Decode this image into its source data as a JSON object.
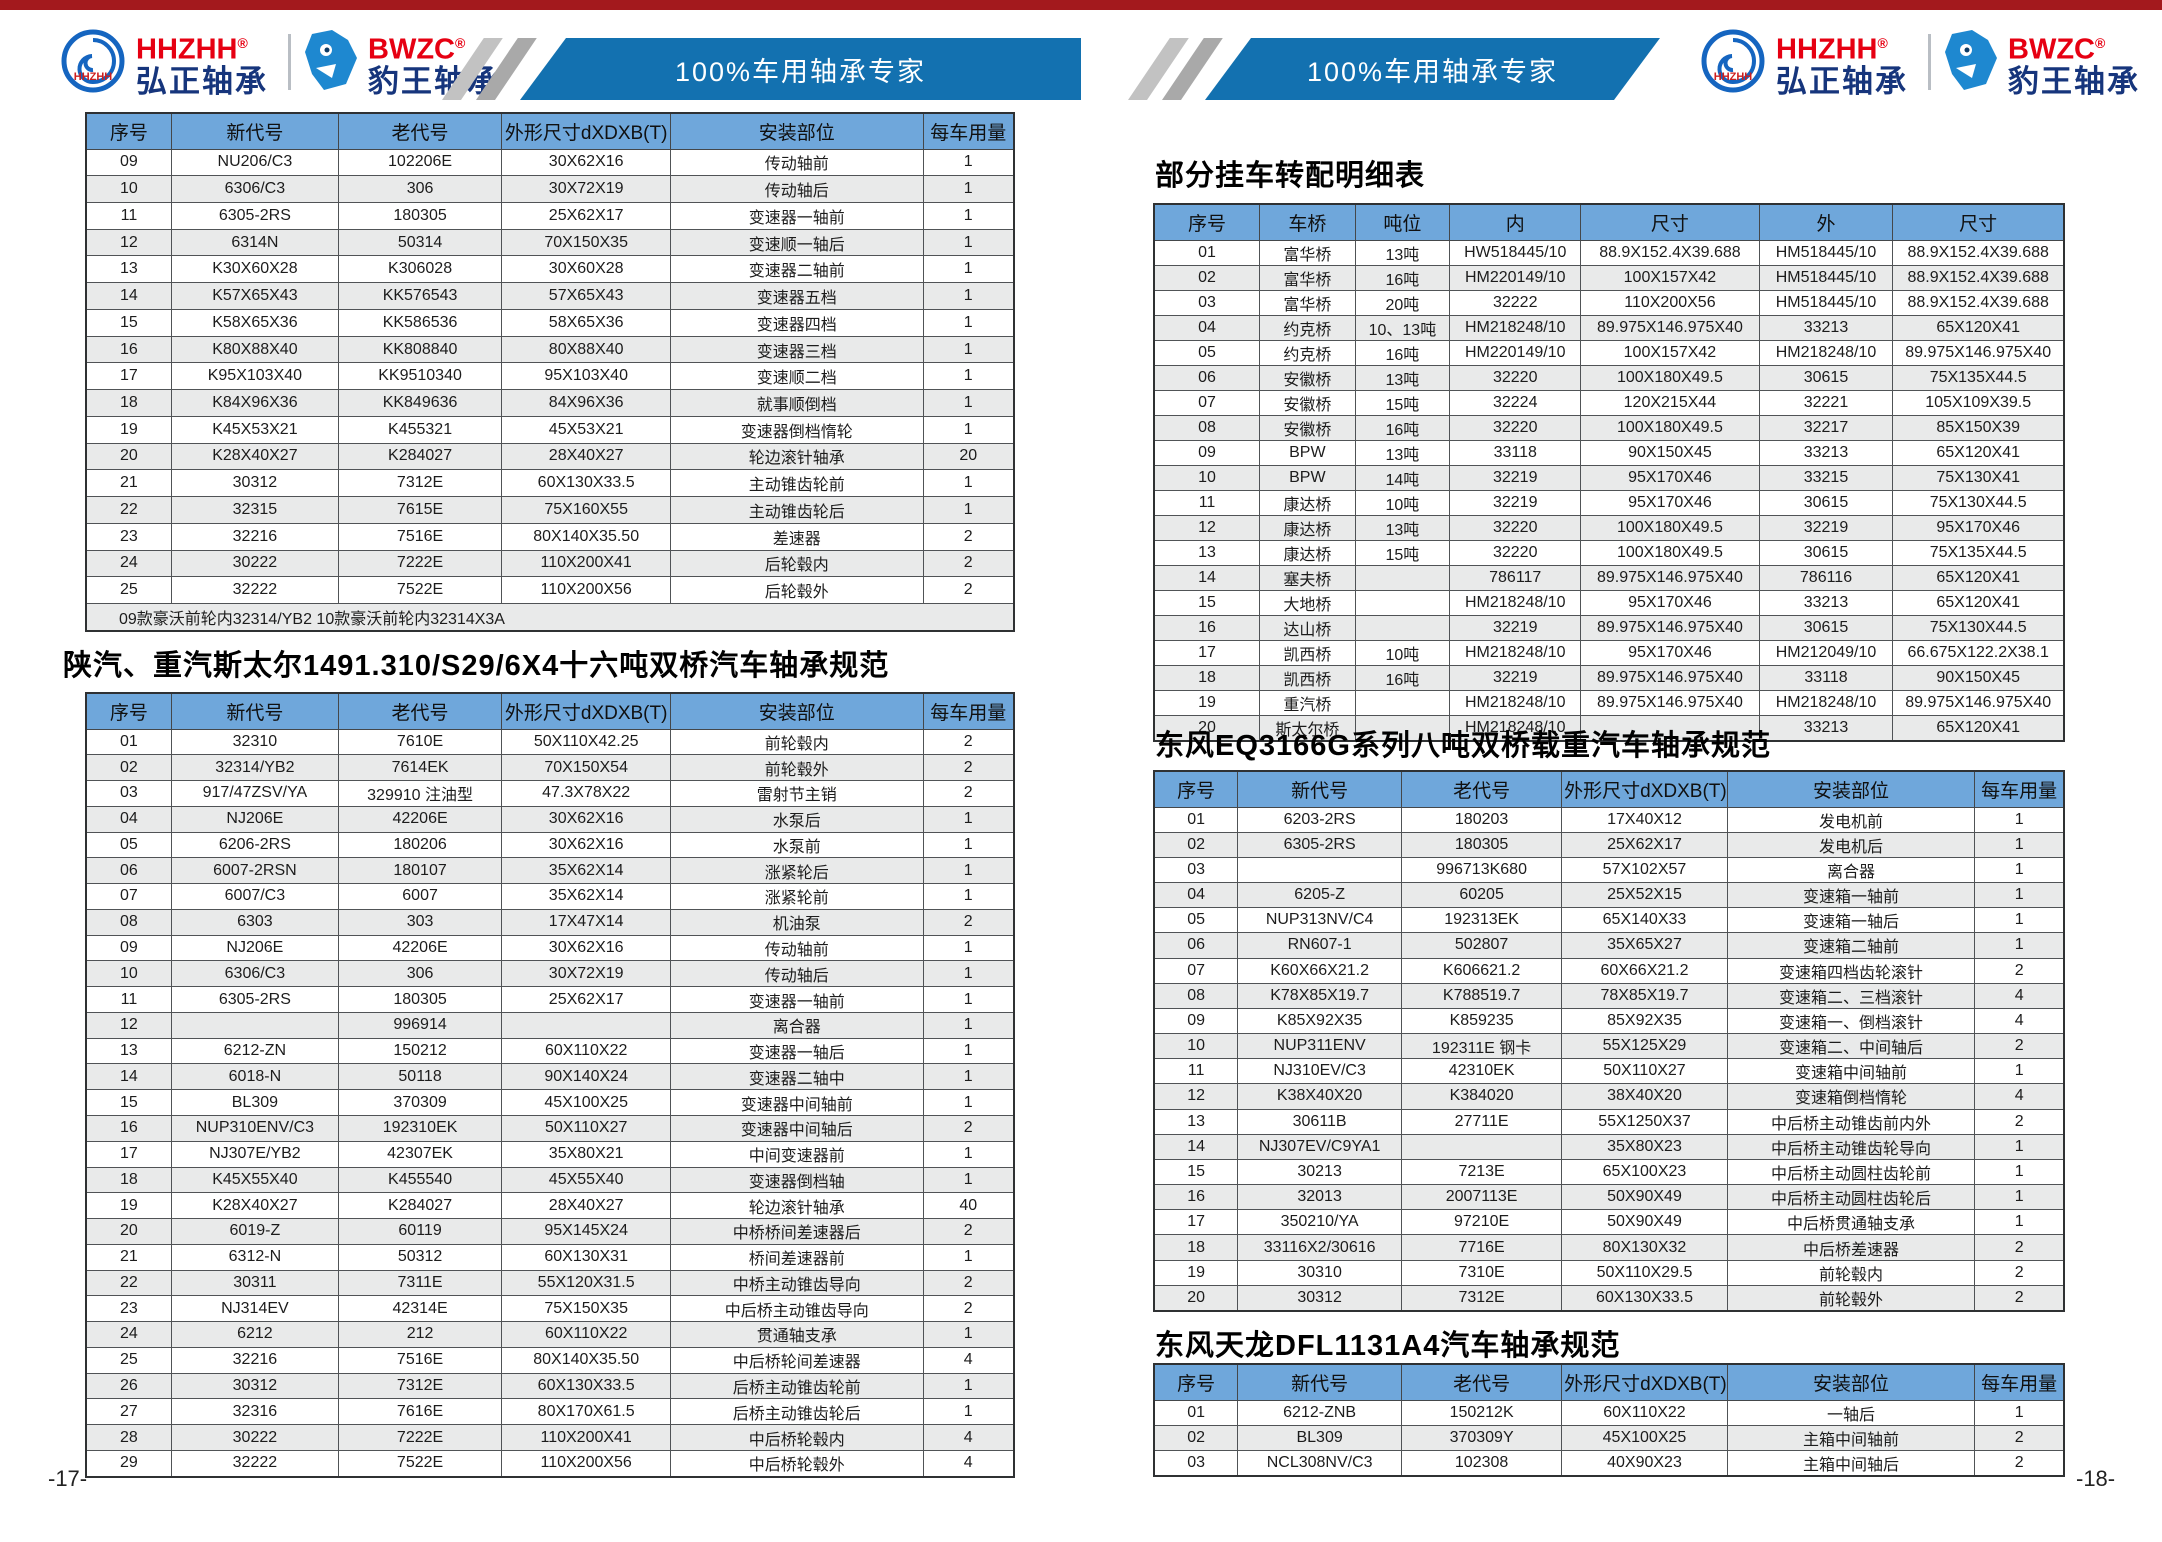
{
  "header": {
    "top_bar_color": "#a3191d",
    "banner": {
      "text": "100%车用轴承专家",
      "color": "#1371b0"
    },
    "brands": {
      "hhzhh": {
        "abbr": "HHZHH",
        "reg": "®",
        "name": "弘正轴承",
        "circle_label": "HHZHH"
      },
      "bwzc": {
        "abbr": "BWZC",
        "reg": "®",
        "name": "豹王轴承"
      }
    }
  },
  "footer": {
    "left_page": "-17-",
    "right_page": "-18-"
  },
  "tables": {
    "howo": {
      "columns": [
        "序号",
        "新代号",
        "老代号",
        "外形尺寸dXDXB(T)",
        "安装部位",
        "每车用量"
      ],
      "rows": [
        [
          "09",
          "NU206/C3",
          "102206E",
          "30X62X16",
          "传动轴前",
          "1"
        ],
        [
          "10",
          "6306/C3",
          "306",
          "30X72X19",
          "传动轴后",
          "1"
        ],
        [
          "11",
          "6305-2RS",
          "180305",
          "25X62X17",
          "变速器一轴前",
          "1"
        ],
        [
          "12",
          "6314N",
          "50314",
          "70X150X35",
          "变速顺一轴后",
          "1"
        ],
        [
          "13",
          "K30X60X28",
          "K306028",
          "30X60X28",
          "变速器二轴前",
          "1"
        ],
        [
          "14",
          "K57X65X43",
          "KK576543",
          "57X65X43",
          "变速器五档",
          "1"
        ],
        [
          "15",
          "K58X65X36",
          "KK586536",
          "58X65X36",
          "变速器四档",
          "1"
        ],
        [
          "16",
          "K80X88X40",
          "KK808840",
          "80X88X40",
          "变速器三档",
          "1"
        ],
        [
          "17",
          "K95X103X40",
          "KK9510340",
          "95X103X40",
          "变速顺二档",
          "1"
        ],
        [
          "18",
          "K84X96X36",
          "KK849636",
          "84X96X36",
          "就事顺倒档",
          "1"
        ],
        [
          "19",
          "K45X53X21",
          "K455321",
          "45X53X21",
          "变速器倒档惰轮",
          "1"
        ],
        [
          "20",
          "K28X40X27",
          "K284027",
          "28X40X27",
          "轮边滚针轴承",
          "20"
        ],
        [
          "21",
          "30312",
          "7312E",
          "60X130X33.5",
          "主动锥齿轮前",
          "1"
        ],
        [
          "22",
          "32315",
          "7615E",
          "75X160X55",
          "主动锥齿轮后",
          "1"
        ],
        [
          "23",
          "32216",
          "7516E",
          "80X140X35.50",
          "差速器",
          "2"
        ],
        [
          "24",
          "30222",
          "7222E",
          "110X200X41",
          "后轮毂内",
          "2"
        ],
        [
          "25",
          "32222",
          "7522E",
          "110X200X56",
          "后轮毂外",
          "2"
        ]
      ],
      "note": "09款豪沃前轮内32314/YB2  10款豪沃前轮内32314X3A"
    },
    "steyr": {
      "title": "陕汽、重汽斯太尔1491.310/S29/6X4十六吨双桥汽车轴承规范",
      "columns": [
        "序号",
        "新代号",
        "老代号",
        "外形尺寸dXDXB(T)",
        "安装部位",
        "每车用量"
      ],
      "rows": [
        [
          "01",
          "32310",
          "7610E",
          "50X110X42.25",
          "前轮毂内",
          "2"
        ],
        [
          "02",
          "32314/YB2",
          "7614EK",
          "70X150X54",
          "前轮毂外",
          "2"
        ],
        [
          "03",
          "917/47ZSV/YA",
          "329910 注油型",
          "47.3X78X22",
          "雷射节主销",
          "2"
        ],
        [
          "04",
          "NJ206E",
          "42206E",
          "30X62X16",
          "水泵后",
          "1"
        ],
        [
          "05",
          "6206-2RS",
          "180206",
          "30X62X16",
          "水泵前",
          "1"
        ],
        [
          "06",
          "6007-2RSN",
          "180107",
          "35X62X14",
          "涨紧轮后",
          "1"
        ],
        [
          "07",
          "6007/C3",
          "6007",
          "35X62X14",
          "涨紧轮前",
          "1"
        ],
        [
          "08",
          "6303",
          "303",
          "17X47X14",
          "机油泵",
          "2"
        ],
        [
          "09",
          "NJ206E",
          "42206E",
          "30X62X16",
          "传动轴前",
          "1"
        ],
        [
          "10",
          "6306/C3",
          "306",
          "30X72X19",
          "传动轴后",
          "1"
        ],
        [
          "11",
          "6305-2RS",
          "180305",
          "25X62X17",
          "变速器一轴前",
          "1"
        ],
        [
          "12",
          "",
          "996914",
          "",
          "离合器",
          "1"
        ],
        [
          "13",
          "6212-ZN",
          "150212",
          "60X110X22",
          "变速器一轴后",
          "1"
        ],
        [
          "14",
          "6018-N",
          "50118",
          "90X140X24",
          "变速器二轴中",
          "1"
        ],
        [
          "15",
          "BL309",
          "370309",
          "45X100X25",
          "变速器中间轴前",
          "1"
        ],
        [
          "16",
          "NUP310ENV/C3",
          "192310EK",
          "50X110X27",
          "变速器中间轴后",
          "2"
        ],
        [
          "17",
          "NJ307E/YB2",
          "42307EK",
          "35X80X21",
          "中间变速器前",
          "1"
        ],
        [
          "18",
          "K45X55X40",
          "K455540",
          "45X55X40",
          "变速器倒档轴",
          "1"
        ],
        [
          "19",
          "K28X40X27",
          "K284027",
          "28X40X27",
          "轮边滚针轴承",
          "40"
        ],
        [
          "20",
          "6019-Z",
          "60119",
          "95X145X24",
          "中桥桥间差速器后",
          "2"
        ],
        [
          "21",
          "6312-N",
          "50312",
          "60X130X31",
          "桥间差速器前",
          "1"
        ],
        [
          "22",
          "30311",
          "7311E",
          "55X120X31.5",
          "中桥主动锥齿导向",
          "2"
        ],
        [
          "23",
          "NJ314EV",
          "42314E",
          "75X150X35",
          "中后桥主动锥齿导向",
          "2"
        ],
        [
          "24",
          "6212",
          "212",
          "60X110X22",
          "贯通轴支承",
          "1"
        ],
        [
          "25",
          "32216",
          "7516E",
          "80X140X35.50",
          "中后桥轮间差速器",
          "4"
        ],
        [
          "26",
          "30312",
          "7312E",
          "60X130X33.5",
          "后桥主动锥齿轮前",
          "1"
        ],
        [
          "27",
          "32316",
          "7616E",
          "80X170X61.5",
          "后桥主动锥齿轮后",
          "1"
        ],
        [
          "28",
          "30222",
          "7222E",
          "110X200X41",
          "中后桥轮毂内",
          "4"
        ],
        [
          "29",
          "32222",
          "7522E",
          "110X200X56",
          "中后桥轮毂外",
          "4"
        ]
      ]
    },
    "trailer": {
      "title": "部分挂车转配明细表",
      "columns": [
        "序号",
        "车桥",
        "吨位",
        "内",
        "尺寸",
        "外",
        "尺寸"
      ],
      "rows": [
        [
          "01",
          "富华桥",
          "13吨",
          "HW518445/10",
          "88.9X152.4X39.688",
          "HM518445/10",
          "88.9X152.4X39.688"
        ],
        [
          "02",
          "富华桥",
          "16吨",
          "HM220149/10",
          "100X157X42",
          "HM518445/10",
          "88.9X152.4X39.688"
        ],
        [
          "03",
          "富华桥",
          "20吨",
          "32222",
          "110X200X56",
          "HM518445/10",
          "88.9X152.4X39.688"
        ],
        [
          "04",
          "约克桥",
          "10、13吨",
          "HM218248/10",
          "89.975X146.975X40",
          "33213",
          "65X120X41"
        ],
        [
          "05",
          "约克桥",
          "16吨",
          "HM220149/10",
          "100X157X42",
          "HM218248/10",
          "89.975X146.975X40"
        ],
        [
          "06",
          "安徽桥",
          "13吨",
          "32220",
          "100X180X49.5",
          "30615",
          "75X135X44.5"
        ],
        [
          "07",
          "安徽桥",
          "15吨",
          "32224",
          "120X215X44",
          "32221",
          "105X109X39.5"
        ],
        [
          "08",
          "安徽桥",
          "16吨",
          "32220",
          "100X180X49.5",
          "32217",
          "85X150X39"
        ],
        [
          "09",
          "BPW",
          "13吨",
          "33118",
          "90X150X45",
          "33213",
          "65X120X41"
        ],
        [
          "10",
          "BPW",
          "14吨",
          "32219",
          "95X170X46",
          "33215",
          "75X130X41"
        ],
        [
          "11",
          "康达桥",
          "10吨",
          "32219",
          "95X170X46",
          "30615",
          "75X130X44.5"
        ],
        [
          "12",
          "康达桥",
          "13吨",
          "32220",
          "100X180X49.5",
          "32219",
          "95X170X46"
        ],
        [
          "13",
          "康达桥",
          "15吨",
          "32220",
          "100X180X49.5",
          "30615",
          "75X135X44.5"
        ],
        [
          "14",
          "塞夫桥",
          "",
          "786117",
          "89.975X146.975X40",
          "786116",
          "65X120X41"
        ],
        [
          "15",
          "大地桥",
          "",
          "HM218248/10",
          "95X170X46",
          "33213",
          "65X120X41"
        ],
        [
          "16",
          "达山桥",
          "",
          "32219",
          "89.975X146.975X40",
          "30615",
          "75X130X44.5"
        ],
        [
          "17",
          "凯西桥",
          "10吨",
          "HM218248/10",
          "95X170X46",
          "HM212049/10",
          "66.675X122.2X38.1"
        ],
        [
          "18",
          "凯西桥",
          "16吨",
          "32219",
          "89.975X146.975X40",
          "33118",
          "90X150X45"
        ],
        [
          "19",
          "重汽桥",
          "",
          "HM218248/10",
          "89.975X146.975X40",
          "HM218248/10",
          "89.975X146.975X40"
        ],
        [
          "20",
          "斯太尔桥",
          "",
          "HM218248/10",
          "",
          "33213",
          "65X120X41"
        ]
      ]
    },
    "eq3166g": {
      "title": "东风EQ3166G系列八吨双桥载重汽车轴承规范",
      "columns": [
        "序号",
        "新代号",
        "老代号",
        "外形尺寸dXDXB(T)",
        "安装部位",
        "每车用量"
      ],
      "rows": [
        [
          "01",
          "6203-2RS",
          "180203",
          "17X40X12",
          "发电机前",
          "1"
        ],
        [
          "02",
          "6305-2RS",
          "180305",
          "25X62X17",
          "发电机后",
          "1"
        ],
        [
          "03",
          "",
          "996713K680",
          "57X102X57",
          "离合器",
          "1"
        ],
        [
          "04",
          "6205-Z",
          "60205",
          "25X52X15",
          "变速箱一轴前",
          "1"
        ],
        [
          "05",
          "NUP313NV/C4",
          "192313EK",
          "65X140X33",
          "变速箱一轴后",
          "1"
        ],
        [
          "06",
          "RN607-1",
          "502807",
          "35X65X27",
          "变速箱二轴前",
          "1"
        ],
        [
          "07",
          "K60X66X21.2",
          "K606621.2",
          "60X66X21.2",
          "变速箱四档齿轮滚针",
          "2"
        ],
        [
          "08",
          "K78X85X19.7",
          "K788519.7",
          "78X85X19.7",
          "变速箱二、三档滚针",
          "4"
        ],
        [
          "09",
          "K85X92X35",
          "K859235",
          "85X92X35",
          "变速箱一、倒档滚针",
          "4"
        ],
        [
          "10",
          "NUP311ENV",
          "192311E 钢卡",
          "55X125X29",
          "变速箱二、中间轴后",
          "2"
        ],
        [
          "11",
          "NJ310EV/C3",
          "42310EK",
          "50X110X27",
          "变速箱中间轴前",
          "1"
        ],
        [
          "12",
          "K38X40X20",
          "K384020",
          "38X40X20",
          "变速箱倒档惰轮",
          "4"
        ],
        [
          "13",
          "30611B",
          "27711E",
          "55X1250X37",
          "中后桥主动锥齿前内外",
          "2"
        ],
        [
          "14",
          "NJ307EV/C9YA1",
          "",
          "35X80X23",
          "中后桥主动锥齿轮导向",
          "1"
        ],
        [
          "15",
          "30213",
          "7213E",
          "65X100X23",
          "中后桥主动圆柱齿轮前",
          "1"
        ],
        [
          "16",
          "32013",
          "2007113E",
          "50X90X49",
          "中后桥主动圆柱齿轮后",
          "1"
        ],
        [
          "17",
          "350210/YA",
          "97210E",
          "50X90X49",
          "中后桥贯通轴支承",
          "1"
        ],
        [
          "18",
          "33116X2/30616",
          "7716E",
          "80X130X32",
          "中后桥差速器",
          "2"
        ],
        [
          "19",
          "30310",
          "7310E",
          "50X110X29.5",
          "前轮毂内",
          "2"
        ],
        [
          "20",
          "30312",
          "7312E",
          "60X130X33.5",
          "前轮毂外",
          "2"
        ]
      ]
    },
    "dfl1131a4": {
      "title": "东风天龙DFL1131A4汽车轴承规范",
      "columns": [
        "序号",
        "新代号",
        "老代号",
        "外形尺寸dXDXB(T)",
        "安装部位",
        "每车用量"
      ],
      "rows": [
        [
          "01",
          "6212-ZNB",
          "150212K",
          "60X110X22",
          "一轴后",
          "1"
        ],
        [
          "02",
          "BL309",
          "370309Y",
          "45X100X25",
          "主箱中间轴前",
          "2"
        ],
        [
          "03",
          "NCL308NV/C3",
          "102308",
          "40X90X23",
          "主箱中间轴后",
          "2"
        ]
      ]
    }
  }
}
